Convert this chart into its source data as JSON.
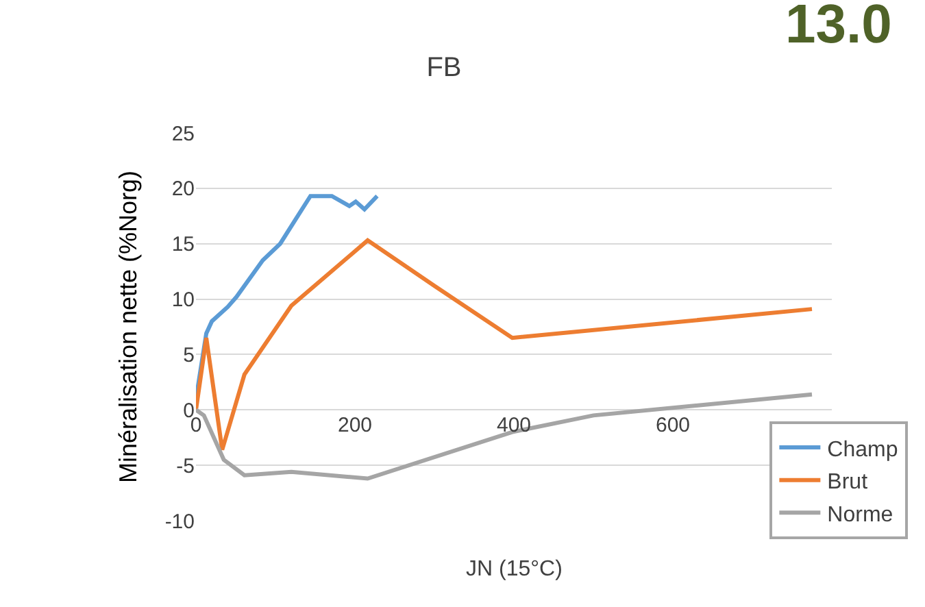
{
  "chart_data": {
    "type": "line",
    "title": "FB",
    "xlabel": "JN (15°C)",
    "ylabel": "Minéralisation nette (%Norg)",
    "annotations": [
      "13.0"
    ],
    "xlim": [
      0,
      800
    ],
    "xticks": [
      0,
      200,
      400,
      600
    ],
    "ylim": [
      -10,
      25
    ],
    "yticks": [
      -10,
      -5,
      0,
      5,
      10,
      15,
      20,
      25
    ],
    "grid": "y",
    "legend": "bottom right",
    "marker": "none",
    "line_style": "solid",
    "series": [
      {
        "name": "Champ",
        "color": "#5b9bd5",
        "x": [
          0,
          13,
          20,
          40,
          51,
          84,
          106,
          128,
          144,
          171,
          193,
          201,
          212,
          228
        ],
        "values": [
          1,
          6.9,
          8,
          9.3,
          10.2,
          13.5,
          15,
          17.5,
          19.3,
          19.3,
          18.4,
          18.8,
          18.1,
          19.3
        ]
      },
      {
        "name": "Brut",
        "color": "#ed7d31",
        "x": [
          0,
          13,
          33,
          61,
          120,
          216,
          300,
          398,
          775
        ],
        "values": [
          0,
          6.5,
          -3.6,
          3.2,
          9.4,
          15.3,
          11.2,
          6.5,
          9.1
        ]
      },
      {
        "name": "Norme",
        "color": "#a5a5a5",
        "x": [
          0,
          10,
          35,
          61,
          120,
          216,
          398,
          500,
          775
        ],
        "values": [
          0,
          -0.5,
          -4.5,
          -5.9,
          -5.6,
          -6.2,
          -2,
          -0.5,
          1.4
        ]
      }
    ]
  }
}
